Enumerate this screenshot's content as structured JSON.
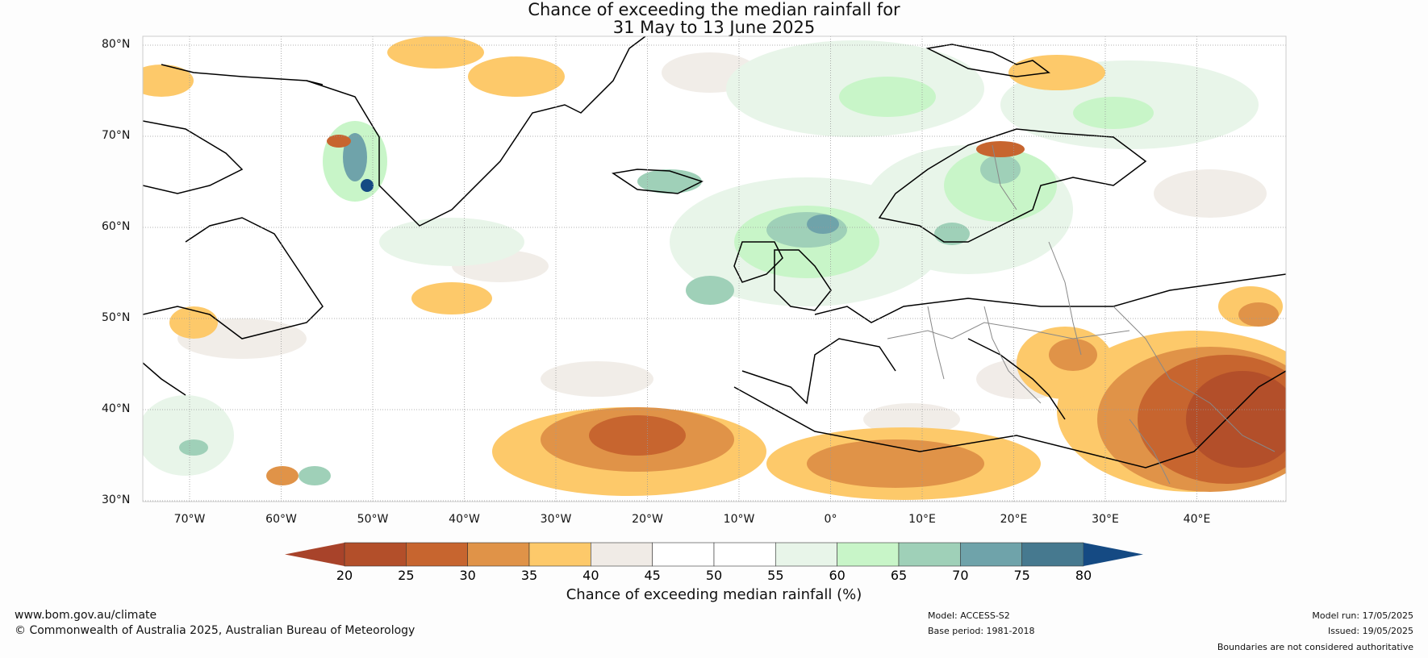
{
  "title_line1": "Chance of exceeding the median rainfall for",
  "title_line2": "31 May to 13 June 2025",
  "lat_labels": [
    "80°N",
    "70°N",
    "60°N",
    "50°N",
    "40°N",
    "30°N"
  ],
  "lon_labels": [
    "70°W",
    "60°W",
    "50°W",
    "40°W",
    "30°W",
    "20°W",
    "10°W",
    "0°",
    "10°E",
    "20°E",
    "30°E",
    "40°E"
  ],
  "colorbar": {
    "ticks": [
      "20",
      "25",
      "30",
      "35",
      "40",
      "45",
      "50",
      "55",
      "60",
      "65",
      "70",
      "75",
      "80"
    ],
    "colors": [
      "#a8432a",
      "#b34f2a",
      "#c7652f",
      "#e09348",
      "#fdc96a",
      "#f0ebe6",
      "#ffffff",
      "#ffffff",
      "#e8f5e9",
      "#c8f5c8",
      "#9fd0b8",
      "#6fa3aa",
      "#46798f",
      "#154a83"
    ],
    "label": "Chance of exceeding median rainfall (%)"
  },
  "footer": {
    "website": "www.bom.gov.au/climate",
    "copyright": "© Commonwealth of Australia 2025, Australian Bureau of Meteorology",
    "model": "Model: ACCESS-S2",
    "base_period": "Base period: 1981-2018",
    "model_run": "Model run: 17/05/2025",
    "issued": "Issued: 19/05/2025",
    "disclaimer": "Boundaries are not considered authoritative"
  }
}
